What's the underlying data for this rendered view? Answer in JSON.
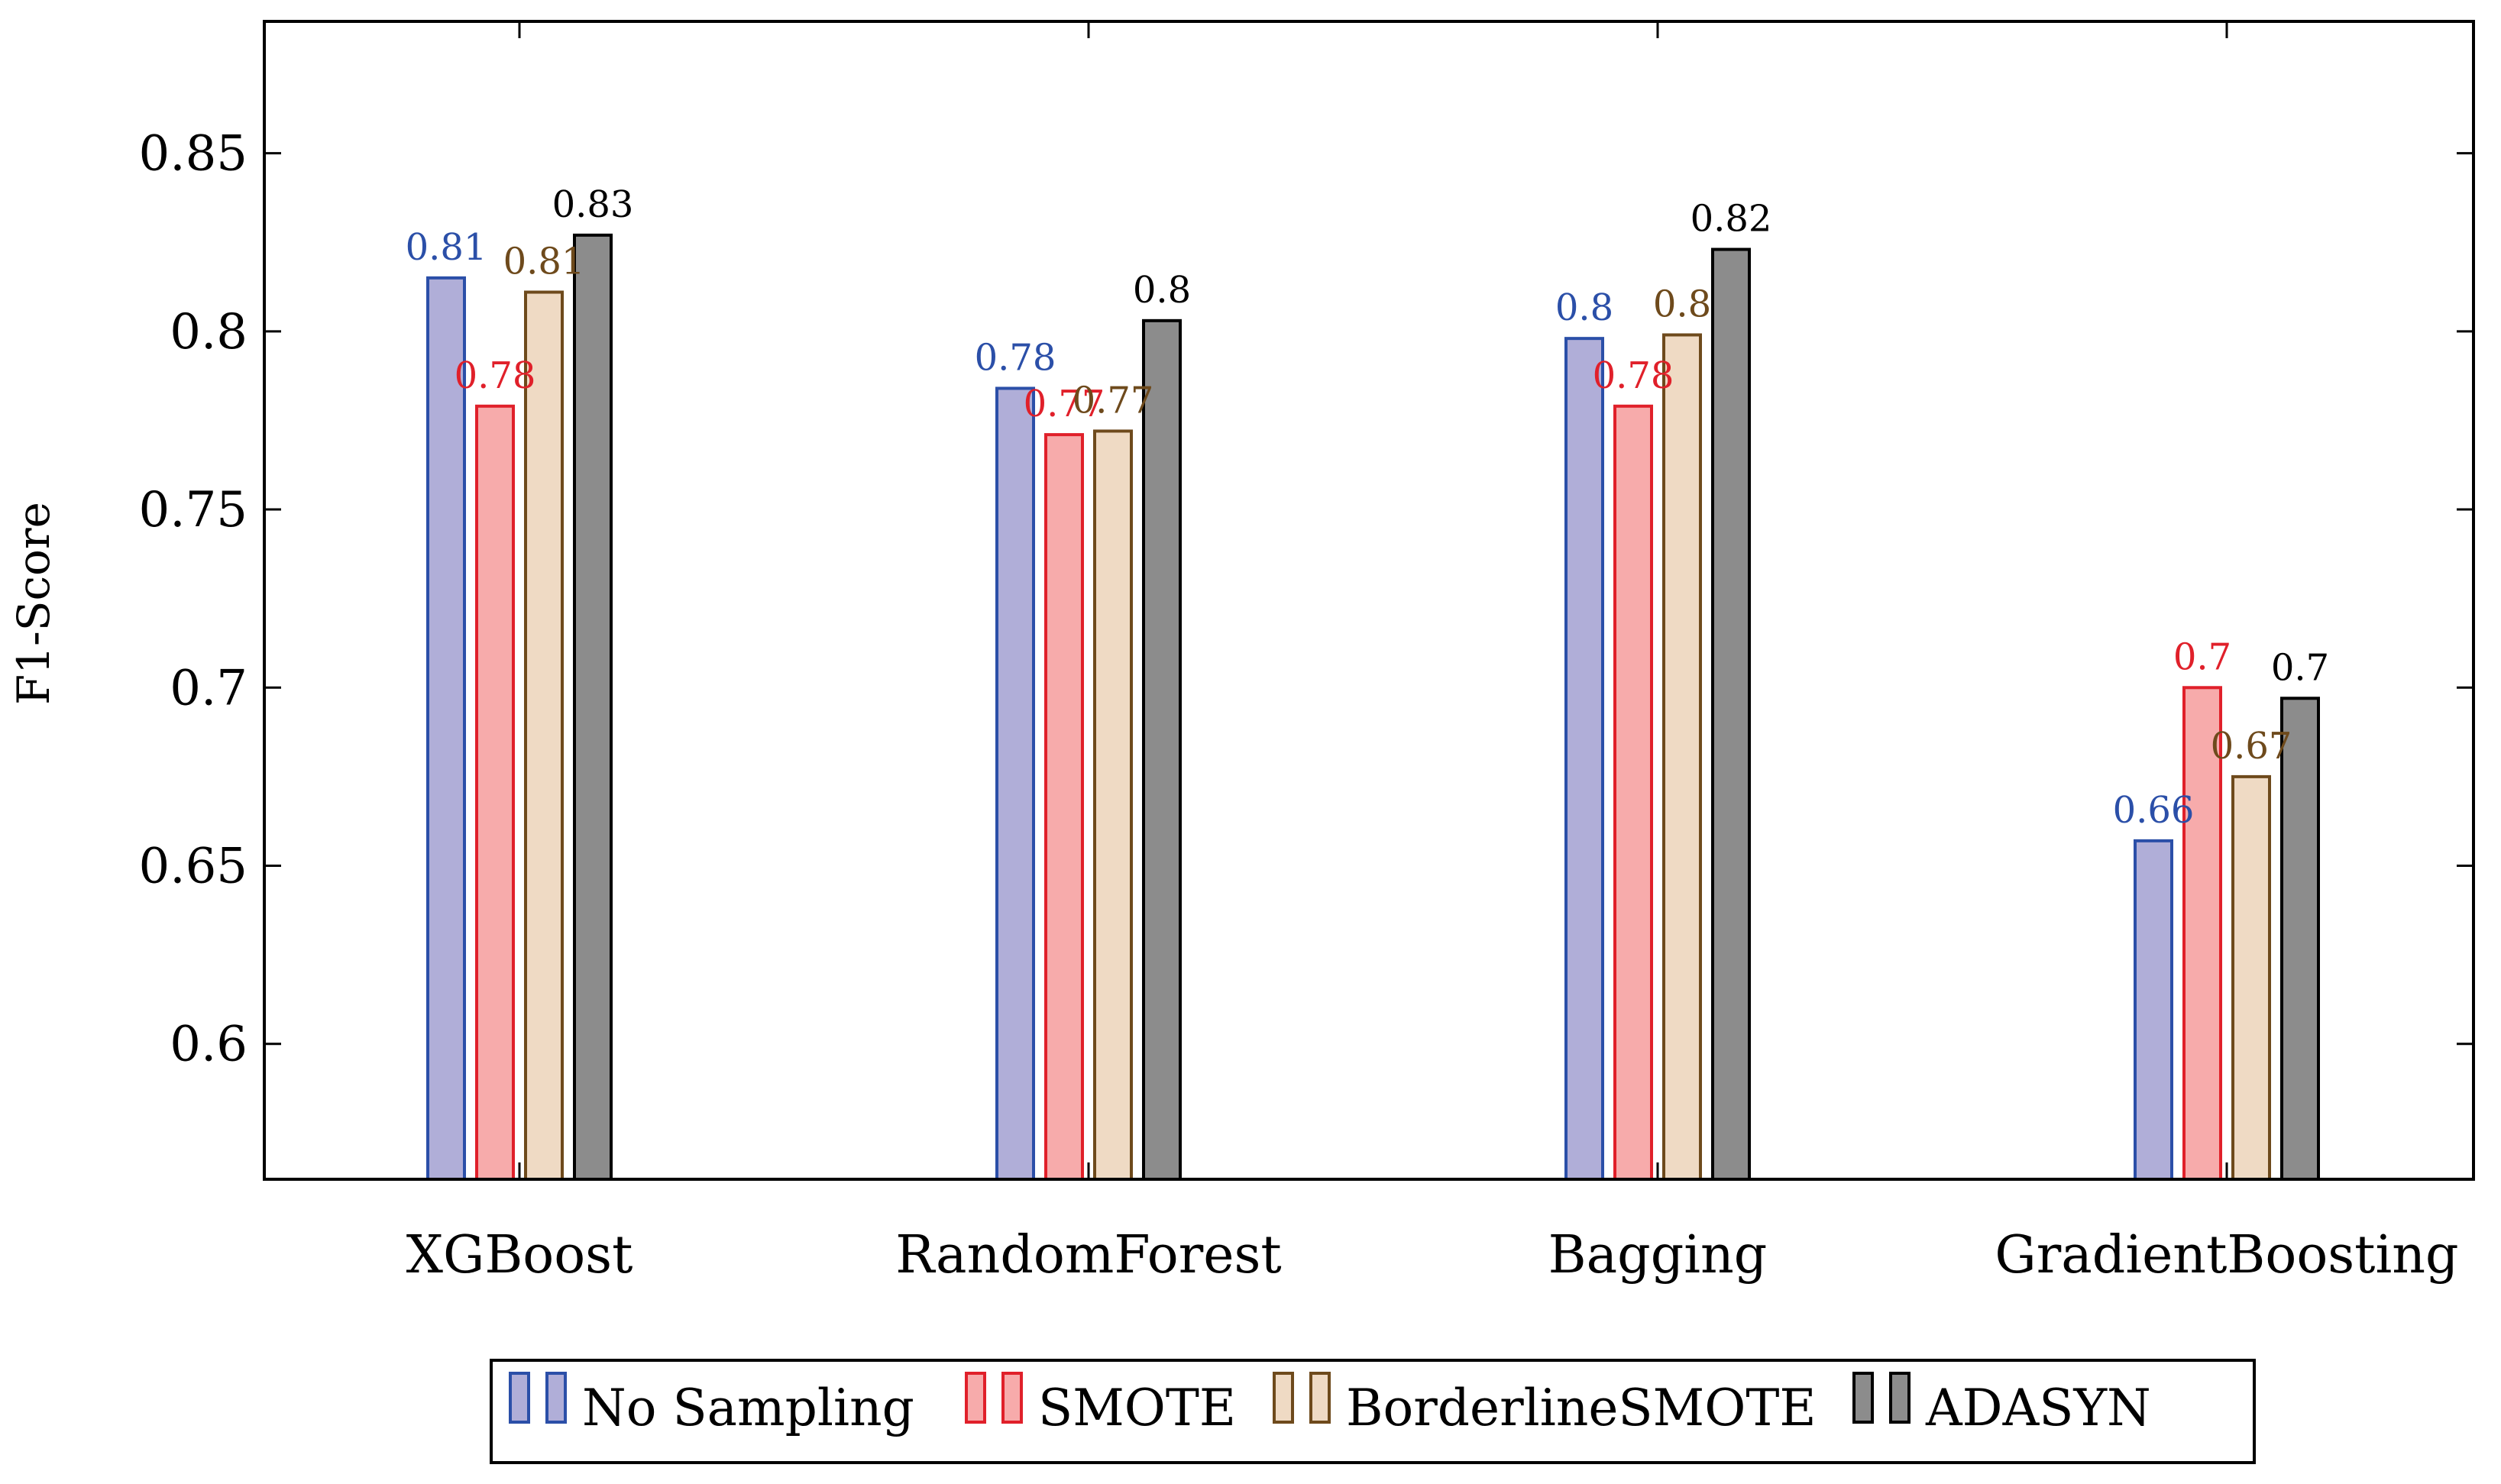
{
  "chart_data": {
    "type": "bar",
    "title": "",
    "xlabel": "",
    "ylabel": "F1-Score",
    "ylim": [
      0.562,
      0.887
    ],
    "yticks": [
      0.6,
      0.65,
      0.7,
      0.75,
      0.8,
      0.85
    ],
    "ytick_labels": [
      "0.6",
      "0.65",
      "0.7",
      "0.75",
      "0.8",
      "0.85"
    ],
    "grid": false,
    "legend_position": "bottom-center",
    "categories": [
      "XGBoost",
      "RandomForest",
      "Bagging",
      "GradientBoosting"
    ],
    "series": [
      {
        "name": "No Sampling",
        "fill": "#b0aed8",
        "stroke": "#2b4fa8",
        "label_color": "#2b4fa8",
        "values": [
          0.815,
          0.784,
          0.798,
          0.657
        ],
        "labels": [
          "0.81",
          "0.78",
          "0.8",
          "0.66"
        ]
      },
      {
        "name": "SMOTE",
        "fill": "#f7abab",
        "stroke": "#e0202a",
        "label_color": "#e0202a",
        "values": [
          0.779,
          0.771,
          0.779,
          0.7
        ],
        "labels": [
          "0.78",
          "0.77",
          "0.78",
          "0.7"
        ]
      },
      {
        "name": "BorderlineSMOTE",
        "fill": "#efdac4",
        "stroke": "#6e4a1c",
        "label_color": "#6e4a1c",
        "values": [
          0.811,
          0.772,
          0.799,
          0.675
        ],
        "labels": [
          "0.81",
          "0.77",
          "0.8",
          "0.67"
        ]
      },
      {
        "name": "ADASYN",
        "fill": "#8c8c8c",
        "stroke": "#000000",
        "label_color": "#000000",
        "values": [
          0.827,
          0.803,
          0.823,
          0.697
        ],
        "labels": [
          "0.83",
          "0.8",
          "0.82",
          "0.7"
        ]
      }
    ]
  }
}
